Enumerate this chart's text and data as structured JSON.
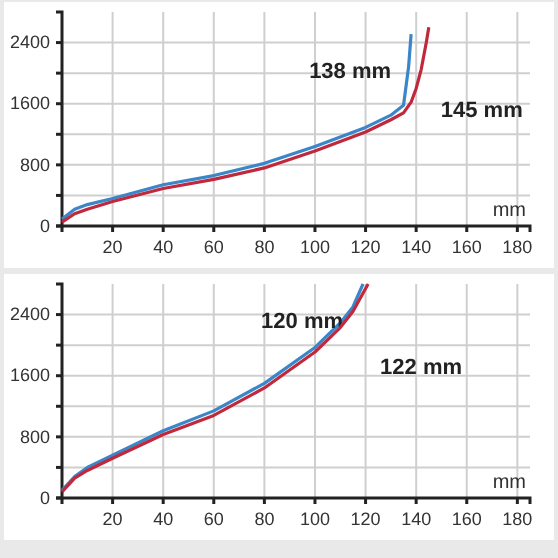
{
  "chart_data": [
    {
      "type": "line",
      "xlabel": "mm",
      "xlim": [
        0,
        185
      ],
      "ylim": [
        0,
        2800
      ],
      "xticks": [
        20,
        40,
        60,
        80,
        100,
        120,
        140,
        160,
        180
      ],
      "yticks": [
        0,
        {
          "value": 400,
          "label": null
        },
        800,
        {
          "value": 1200,
          "label": null
        },
        1600,
        {
          "value": 2000,
          "label": null
        },
        2400
      ],
      "grid": true,
      "marker": "none",
      "line_style": "solid",
      "series": [
        {
          "name": "138 mm",
          "color": "#3a86c8",
          "x": [
            0,
            5,
            10,
            20,
            40,
            60,
            80,
            100,
            120,
            130,
            135,
            137,
            138
          ],
          "values": [
            90,
            220,
            280,
            360,
            540,
            660,
            820,
            1040,
            1290,
            1450,
            1580,
            2080,
            2510
          ]
        },
        {
          "name": "145 mm",
          "color": "#c0283c",
          "x": [
            0,
            5,
            10,
            20,
            40,
            60,
            80,
            100,
            120,
            130,
            135,
            138,
            140,
            142,
            144,
            145
          ],
          "values": [
            50,
            160,
            220,
            320,
            490,
            610,
            760,
            980,
            1230,
            1390,
            1480,
            1620,
            1800,
            2050,
            2400,
            2600
          ]
        }
      ]
    },
    {
      "type": "line",
      "xlabel": "mm",
      "xlim": [
        0,
        185
      ],
      "ylim": [
        0,
        2800
      ],
      "xticks": [
        20,
        40,
        60,
        80,
        100,
        120,
        140,
        160,
        180
      ],
      "yticks": [
        0,
        {
          "value": 400,
          "label": null
        },
        800,
        {
          "value": 1200,
          "label": null
        },
        1600,
        {
          "value": 2000,
          "label": null
        },
        2400
      ],
      "grid": true,
      "marker": "none",
      "line_style": "solid",
      "series": [
        {
          "name": "120 mm",
          "color": "#3a86c8",
          "x": [
            0,
            5,
            10,
            20,
            40,
            60,
            80,
            100,
            110,
            115,
            119
          ],
          "values": [
            100,
            280,
            400,
            560,
            880,
            1140,
            1500,
            1970,
            2290,
            2500,
            2800
          ]
        },
        {
          "name": "122 mm",
          "color": "#c0283c",
          "x": [
            0,
            5,
            10,
            20,
            40,
            60,
            80,
            100,
            110,
            115,
            121
          ],
          "values": [
            80,
            260,
            360,
            520,
            830,
            1080,
            1440,
            1910,
            2230,
            2440,
            2800
          ]
        }
      ]
    }
  ]
}
